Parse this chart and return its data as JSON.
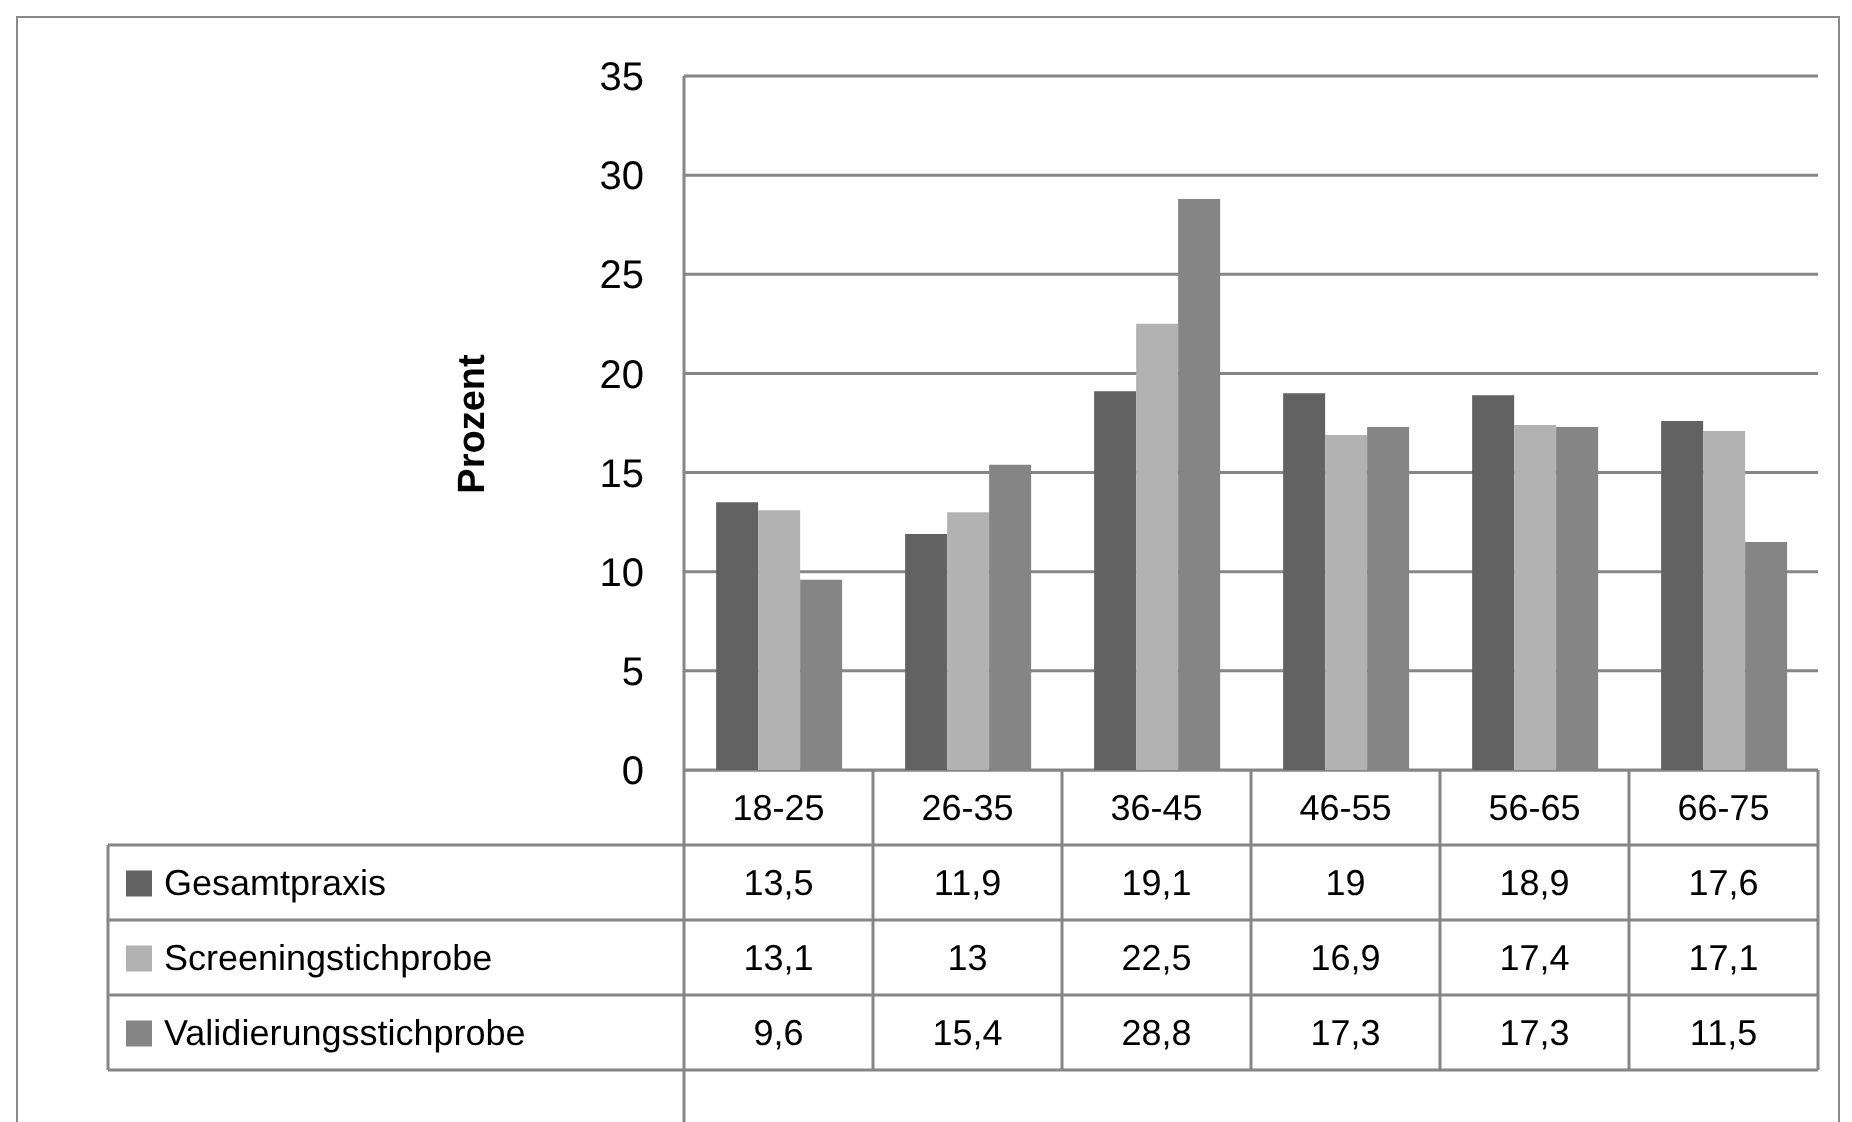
{
  "chart_data": {
    "type": "bar",
    "ylabel": "Prozent",
    "categories": [
      "18-25",
      "26-35",
      "36-45",
      "46-55",
      "56-65",
      "66-75"
    ],
    "series": [
      {
        "name": "Gesamtpraxis",
        "color": "#626262",
        "values": [
          13.5,
          11.9,
          19.1,
          19,
          18.9,
          17.6
        ],
        "value_labels": [
          "13,5",
          "11,9",
          "19,1",
          "19",
          "18,9",
          "17,6"
        ]
      },
      {
        "name": "Screeningstichprobe",
        "color": "#b2b2b2",
        "values": [
          13.1,
          13,
          22.5,
          16.9,
          17.4,
          17.1
        ],
        "value_labels": [
          "13,1",
          "13",
          "22,5",
          "16,9",
          "17,4",
          "17,1"
        ]
      },
      {
        "name": "Validierungsstichprobe",
        "color": "#858585",
        "values": [
          9.6,
          15.4,
          28.8,
          17.3,
          17.3,
          11.5
        ],
        "value_labels": [
          "9,6",
          "15,4",
          "28,8",
          "17,3",
          "17,3",
          "11,5"
        ]
      }
    ],
    "ylim": [
      0,
      35
    ],
    "yticks": [
      0,
      5,
      10,
      15,
      20,
      25,
      30,
      35
    ],
    "grid": "y",
    "legend": "bottom"
  }
}
